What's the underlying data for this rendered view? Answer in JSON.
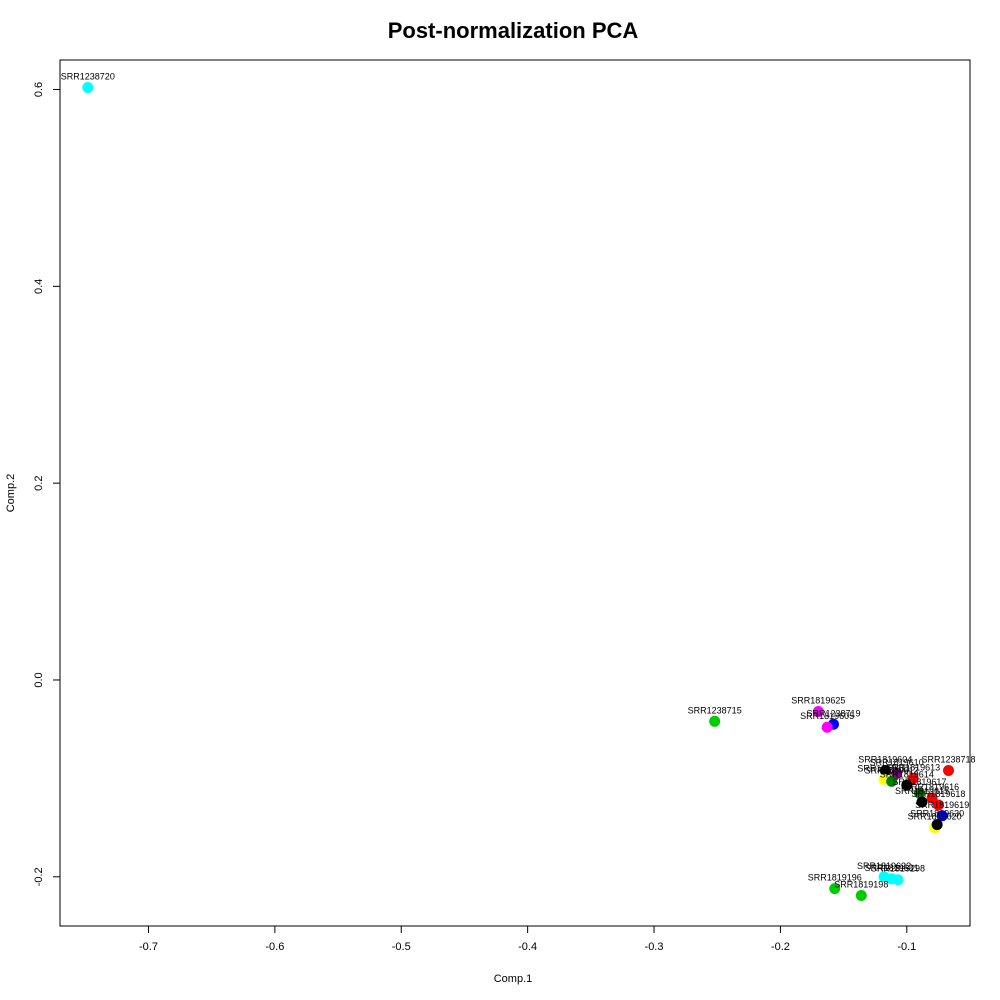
{
  "chart_data": {
    "type": "scatter",
    "title": "Post-normalization PCA",
    "xlabel": "Comp.1",
    "ylabel": "Comp.2",
    "xlim": [
      -0.77,
      -0.05
    ],
    "ylim": [
      -0.25,
      0.63
    ],
    "x_ticks": [
      -0.7,
      -0.6,
      -0.5,
      -0.4,
      -0.3,
      -0.2,
      -0.1
    ],
    "x_tick_labels": [
      "-0.7",
      "-0.6",
      "-0.5",
      "-0.4",
      "-0.3",
      "-0.2",
      "-0.1"
    ],
    "y_ticks": [
      -0.2,
      0.0,
      0.2,
      0.4,
      0.6
    ],
    "y_tick_labels": [
      "-0.2",
      "0.0",
      "0.2",
      "0.4",
      "0.6"
    ],
    "colors": {
      "cyan": "#00ffff",
      "green": "#00cc00",
      "magenta": "#ff00ff",
      "blue": "#0000ff",
      "red": "#ff0000",
      "black": "#000000",
      "yellow": "#ffff00",
      "darkgreen": "#008000",
      "purple": "#800080"
    },
    "points": [
      {
        "label": "SRR1238720",
        "x": -0.748,
        "y": 0.602,
        "color": "cyan"
      },
      {
        "label": "SRR1238715",
        "x": -0.252,
        "y": -0.042,
        "color": "green"
      },
      {
        "label": "SRR1819625",
        "x": -0.17,
        "y": -0.032,
        "color": "magenta"
      },
      {
        "label": "SRR1238719",
        "x": -0.158,
        "y": -0.045,
        "color": "blue"
      },
      {
        "label": "SRR1819605",
        "x": -0.163,
        "y": -0.048,
        "color": "magenta"
      },
      {
        "label": "SRR1819604",
        "x": -0.117,
        "y": -0.092,
        "color": "black"
      },
      {
        "label": "SRR1238718",
        "x": -0.067,
        "y": -0.092,
        "color": "red"
      },
      {
        "label": "SRR1819610",
        "x": -0.108,
        "y": -0.095,
        "color": "purple"
      },
      {
        "label": "SRR1819611",
        "x": -0.118,
        "y": -0.101,
        "color": "yellow"
      },
      {
        "label": "SRR1819612",
        "x": -0.112,
        "y": -0.103,
        "color": "darkgreen"
      },
      {
        "label": "SRR1819613",
        "x": -0.095,
        "y": -0.1,
        "color": "red"
      },
      {
        "label": "SRR1819614",
        "x": -0.1,
        "y": -0.107,
        "color": "black"
      },
      {
        "label": "SRR1819617",
        "x": -0.09,
        "y": -0.115,
        "color": "darkgreen"
      },
      {
        "label": "SRR1819616",
        "x": -0.08,
        "y": -0.12,
        "color": "red"
      },
      {
        "label": "SRR1819615",
        "x": -0.088,
        "y": -0.124,
        "color": "black"
      },
      {
        "label": "SRR1819618",
        "x": -0.075,
        "y": -0.127,
        "color": "red"
      },
      {
        "label": "SRR1819619",
        "x": -0.072,
        "y": -0.138,
        "color": "blue"
      },
      {
        "label": "SRR1819620",
        "x": -0.078,
        "y": -0.15,
        "color": "yellow"
      },
      {
        "label": "SRR1819630",
        "x": -0.076,
        "y": -0.147,
        "color": "black"
      },
      {
        "label": "SRR1819622",
        "x": -0.118,
        "y": -0.2,
        "color": "cyan"
      },
      {
        "label": "SRR1819631",
        "x": -0.112,
        "y": -0.202,
        "color": "cyan"
      },
      {
        "label": "SRR1819298",
        "x": -0.107,
        "y": -0.203,
        "color": "cyan"
      },
      {
        "label": "SRR1819196",
        "x": -0.157,
        "y": -0.212,
        "color": "green"
      },
      {
        "label": "SRR1819198",
        "x": -0.136,
        "y": -0.219,
        "color": "green"
      }
    ]
  }
}
